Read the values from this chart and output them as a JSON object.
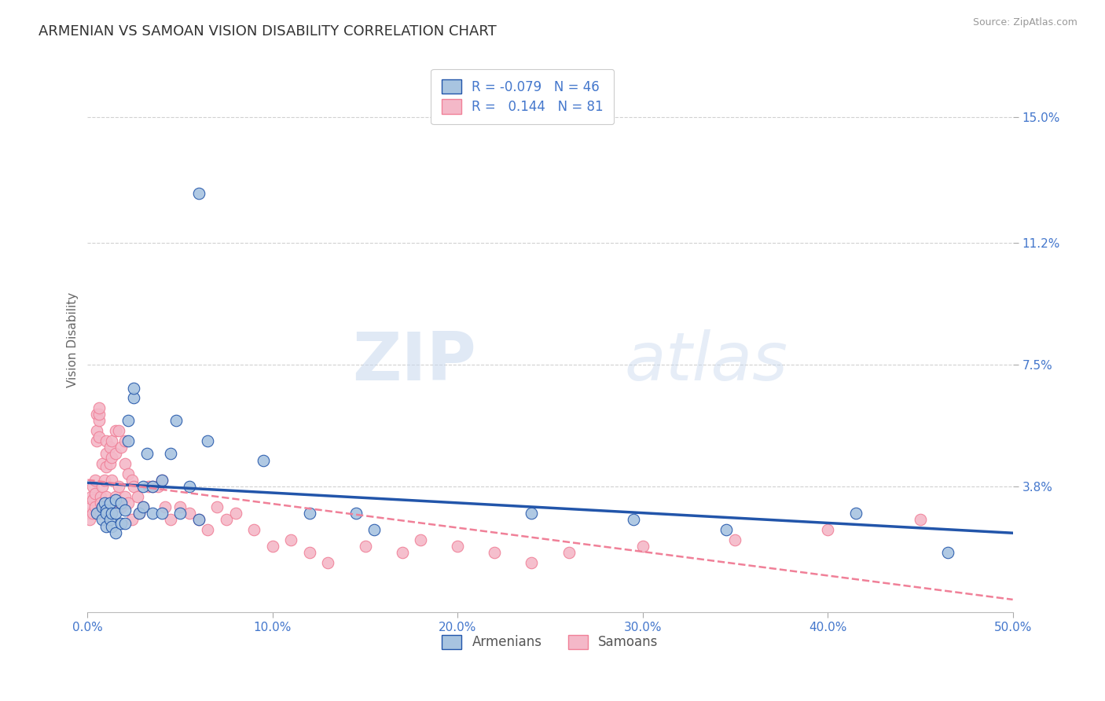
{
  "title": "ARMENIAN VS SAMOAN VISION DISABILITY CORRELATION CHART",
  "source": "Source: ZipAtlas.com",
  "ylabel": "Vision Disability",
  "xlim": [
    0.0,
    0.5
  ],
  "ylim": [
    0.0,
    0.165
  ],
  "xtick_labels": [
    "0.0%",
    "10.0%",
    "20.0%",
    "30.0%",
    "40.0%",
    "50.0%"
  ],
  "xtick_vals": [
    0.0,
    0.1,
    0.2,
    0.3,
    0.4,
    0.5
  ],
  "ytick_labels": [
    "3.8%",
    "7.5%",
    "11.2%",
    "15.0%"
  ],
  "ytick_vals": [
    0.038,
    0.075,
    0.112,
    0.15
  ],
  "armenian_color": "#a8c4e0",
  "samoan_color": "#f4b8c8",
  "armenian_line_color": "#2255aa",
  "samoan_line_color": "#f08098",
  "background_color": "#ffffff",
  "grid_color": "#cccccc",
  "legend_r_armenian": "-0.079",
  "legend_n_armenian": "46",
  "legend_r_samoan": "0.144",
  "legend_n_samoan": "81",
  "title_color": "#333333",
  "axis_color": "#4477cc",
  "armenian_x": [
    0.005,
    0.008,
    0.008,
    0.009,
    0.01,
    0.01,
    0.01,
    0.012,
    0.012,
    0.013,
    0.013,
    0.015,
    0.015,
    0.015,
    0.018,
    0.018,
    0.02,
    0.02,
    0.022,
    0.022,
    0.025,
    0.025,
    0.028,
    0.03,
    0.03,
    0.032,
    0.035,
    0.035,
    0.04,
    0.04,
    0.045,
    0.048,
    0.05,
    0.055,
    0.06,
    0.06,
    0.065,
    0.095,
    0.12,
    0.145,
    0.155,
    0.24,
    0.295,
    0.345,
    0.415,
    0.465
  ],
  "armenian_y": [
    0.03,
    0.032,
    0.028,
    0.033,
    0.031,
    0.03,
    0.026,
    0.033,
    0.028,
    0.03,
    0.026,
    0.034,
    0.03,
    0.024,
    0.033,
    0.027,
    0.031,
    0.027,
    0.052,
    0.058,
    0.065,
    0.068,
    0.03,
    0.038,
    0.032,
    0.048,
    0.038,
    0.03,
    0.04,
    0.03,
    0.048,
    0.058,
    0.03,
    0.038,
    0.127,
    0.028,
    0.052,
    0.046,
    0.03,
    0.03,
    0.025,
    0.03,
    0.028,
    0.025,
    0.03,
    0.018
  ],
  "samoan_x": [
    0.001,
    0.001,
    0.002,
    0.002,
    0.003,
    0.003,
    0.003,
    0.004,
    0.004,
    0.004,
    0.005,
    0.005,
    0.005,
    0.006,
    0.006,
    0.006,
    0.006,
    0.007,
    0.007,
    0.007,
    0.008,
    0.008,
    0.008,
    0.009,
    0.009,
    0.01,
    0.01,
    0.01,
    0.01,
    0.012,
    0.012,
    0.013,
    0.013,
    0.013,
    0.015,
    0.015,
    0.015,
    0.017,
    0.017,
    0.018,
    0.018,
    0.02,
    0.02,
    0.02,
    0.022,
    0.022,
    0.024,
    0.024,
    0.025,
    0.027,
    0.028,
    0.03,
    0.033,
    0.035,
    0.038,
    0.04,
    0.042,
    0.045,
    0.05,
    0.055,
    0.06,
    0.065,
    0.07,
    0.075,
    0.08,
    0.09,
    0.1,
    0.11,
    0.12,
    0.13,
    0.15,
    0.17,
    0.18,
    0.2,
    0.22,
    0.24,
    0.26,
    0.3,
    0.35,
    0.4,
    0.45
  ],
  "samoan_y": [
    0.03,
    0.028,
    0.035,
    0.032,
    0.038,
    0.034,
    0.03,
    0.04,
    0.036,
    0.032,
    0.06,
    0.055,
    0.052,
    0.058,
    0.06,
    0.062,
    0.053,
    0.035,
    0.033,
    0.03,
    0.045,
    0.038,
    0.032,
    0.04,
    0.033,
    0.052,
    0.048,
    0.044,
    0.035,
    0.05,
    0.045,
    0.052,
    0.047,
    0.04,
    0.055,
    0.048,
    0.035,
    0.055,
    0.038,
    0.05,
    0.032,
    0.052,
    0.045,
    0.035,
    0.042,
    0.033,
    0.04,
    0.028,
    0.038,
    0.035,
    0.03,
    0.032,
    0.038,
    0.038,
    0.038,
    0.04,
    0.032,
    0.028,
    0.032,
    0.03,
    0.028,
    0.025,
    0.032,
    0.028,
    0.03,
    0.025,
    0.02,
    0.022,
    0.018,
    0.015,
    0.02,
    0.018,
    0.022,
    0.02,
    0.018,
    0.015,
    0.018,
    0.02,
    0.022,
    0.025,
    0.028
  ],
  "watermark_zip": "ZIP",
  "watermark_atlas": "atlas",
  "title_fontsize": 13,
  "label_fontsize": 11,
  "tick_fontsize": 11
}
